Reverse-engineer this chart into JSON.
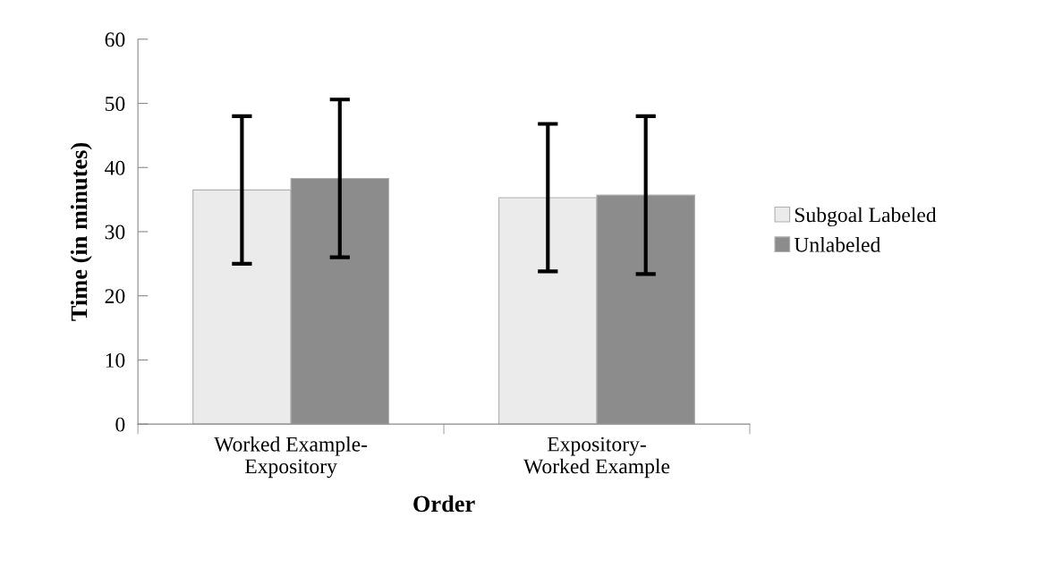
{
  "chart_data": {
    "type": "bar",
    "xlabel": "Order",
    "ylabel": "Time (in minutes)",
    "categories": [
      "Worked Example-\nExpository",
      "Expository-\nWorked Example"
    ],
    "series": [
      {
        "name": "Subgoal Labeled",
        "color": "#ebebeb",
        "values": [
          36.5,
          35.3
        ],
        "errors": [
          11.5,
          11.5
        ]
      },
      {
        "name": "Unlabeled",
        "color": "#8c8c8c",
        "values": [
          38.3,
          35.7
        ],
        "errors": [
          12.3,
          12.3
        ]
      }
    ],
    "ylim": [
      0,
      60
    ],
    "yticks": [
      0,
      10,
      20,
      30,
      40,
      50,
      60
    ],
    "grid": false,
    "legend": "right"
  }
}
